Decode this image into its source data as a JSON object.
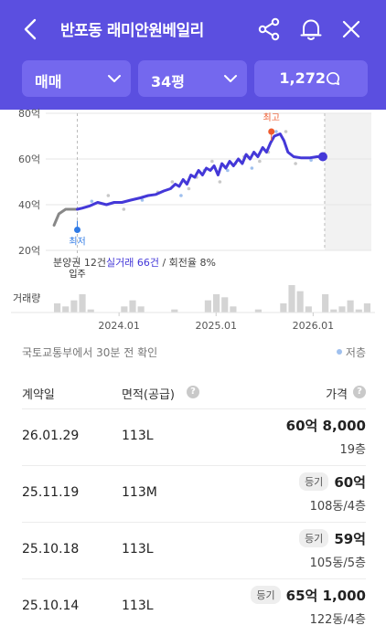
{
  "header": {
    "title": "반포동 래미안원베일리",
    "filters": [
      {
        "label": "매매"
      },
      {
        "label": "34평"
      }
    ],
    "count_label": "1,272"
  },
  "colors": {
    "header_bg": "#5b4fe0",
    "pill_bg": "#7468ee",
    "line": "#4438d8",
    "gray_line": "#888888",
    "high_marker": "#ef5b2e",
    "low_marker": "#2f7ae5"
  },
  "chart_data": {
    "type": "line",
    "y_tick_labels": [
      "80억",
      "60억",
      "40억",
      "20억"
    ],
    "y_ticks": [
      80,
      60,
      40,
      20
    ],
    "ylim": [
      20,
      80
    ],
    "x_tick_labels": [
      "2024.01",
      "2025.01",
      "2026.01"
    ],
    "x_ticks": [
      2024.0,
      2025.0,
      2026.0
    ],
    "xlim": [
      2023.32,
      2026.6
    ],
    "markers": {
      "high": {
        "label": "최고",
        "x": 2025.57,
        "y": 72
      },
      "low": {
        "label": "최저",
        "x": 2023.57,
        "y": 29
      },
      "move_in": {
        "label": "입주",
        "x": 2023.57
      }
    },
    "summary": {
      "pre_sale": "분양권 12건",
      "deals": "실거래 66건",
      "turnover": "/ 회전율 8%"
    },
    "volume_label": "거래량",
    "series": [
      {
        "points": [
          [
            2023.33,
            31
          ],
          [
            2023.38,
            36
          ],
          [
            2023.45,
            38
          ],
          [
            2023.52,
            38
          ],
          [
            2023.57,
            38
          ],
          [
            2023.62,
            38.5
          ],
          [
            2023.7,
            39.5
          ],
          [
            2023.78,
            41
          ],
          [
            2023.87,
            40
          ],
          [
            2023.95,
            41
          ],
          [
            2024.03,
            41
          ],
          [
            2024.12,
            42
          ],
          [
            2024.22,
            43
          ],
          [
            2024.3,
            44
          ],
          [
            2024.38,
            44.5
          ],
          [
            2024.46,
            46
          ],
          [
            2024.53,
            47
          ],
          [
            2024.58,
            49
          ],
          [
            2024.62,
            48
          ],
          [
            2024.66,
            51
          ],
          [
            2024.7,
            49
          ],
          [
            2024.74,
            53
          ],
          [
            2024.78,
            52
          ],
          [
            2024.82,
            55
          ],
          [
            2024.86,
            53
          ],
          [
            2024.9,
            56
          ],
          [
            2024.94,
            55
          ],
          [
            2024.98,
            57
          ],
          [
            2025.02,
            53
          ],
          [
            2025.06,
            58
          ],
          [
            2025.1,
            56
          ],
          [
            2025.14,
            59
          ],
          [
            2025.18,
            57
          ],
          [
            2025.23,
            60
          ],
          [
            2025.27,
            58
          ],
          [
            2025.31,
            62
          ],
          [
            2025.35,
            60
          ],
          [
            2025.39,
            63
          ],
          [
            2025.43,
            61
          ],
          [
            2025.48,
            65
          ],
          [
            2025.52,
            63
          ],
          [
            2025.56,
            67
          ],
          [
            2025.6,
            70
          ],
          [
            2025.66,
            71
          ],
          [
            2025.7,
            68
          ],
          [
            2025.74,
            63
          ],
          [
            2025.8,
            61
          ],
          [
            2025.88,
            60.5
          ],
          [
            2025.96,
            60.5
          ],
          [
            2026.04,
            61
          ],
          [
            2026.1,
            61
          ]
        ]
      }
    ],
    "volume": [
      3,
      2,
      4,
      6,
      1,
      0,
      0,
      0,
      2,
      4,
      2,
      0,
      0,
      0,
      1,
      0,
      0,
      0,
      4,
      6,
      5,
      2,
      0,
      0,
      1,
      0,
      0,
      3,
      9,
      7,
      2,
      0,
      6,
      1,
      2,
      4,
      1,
      3
    ]
  },
  "info": {
    "source": "국토교통부에서 30분 전 확인",
    "legend_low": "저층"
  },
  "table": {
    "headers": {
      "date": "계약일",
      "area": "면적(공급)",
      "price": "가격"
    },
    "rows": [
      {
        "date": "26.01.29",
        "area": "113L",
        "badge": "",
        "price": "60억 8,000",
        "floor": "19층"
      },
      {
        "date": "25.11.19",
        "area": "113M",
        "badge": "등기",
        "price": "60억",
        "floor": "108동/4층"
      },
      {
        "date": "25.10.18",
        "area": "113L",
        "badge": "등기",
        "price": "59억",
        "floor": "105동/5층"
      },
      {
        "date": "25.10.14",
        "area": "113L",
        "badge": "등기",
        "price": "65억 1,000",
        "floor": "122동/4층"
      }
    ]
  }
}
